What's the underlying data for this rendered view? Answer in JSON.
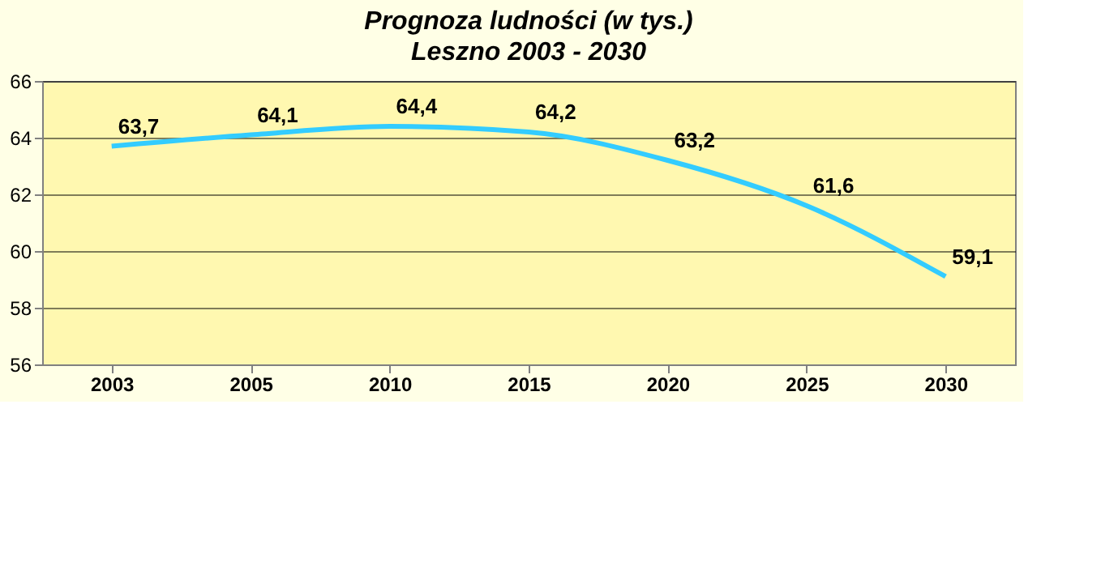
{
  "chart_data": {
    "type": "line",
    "title": "Prognoza ludności (w tys.)",
    "subtitle": "Leszno 2003 - 2030",
    "categories": [
      "2003",
      "2005",
      "2010",
      "2015",
      "2020",
      "2025",
      "2030"
    ],
    "series": [
      {
        "color": "#33ccff",
        "values": [
          63.7,
          64.1,
          64.4,
          64.2,
          63.2,
          61.6,
          59.1
        ],
        "value_labels": [
          "63,7",
          "64,1",
          "64,4",
          "64,2",
          "63,2",
          "61,6",
          "59,1"
        ]
      }
    ],
    "ylim": [
      56,
      66
    ],
    "yticks": [
      56,
      58,
      60,
      62,
      64,
      66
    ],
    "grid": "y",
    "marker": "none",
    "line_style": "solid"
  }
}
